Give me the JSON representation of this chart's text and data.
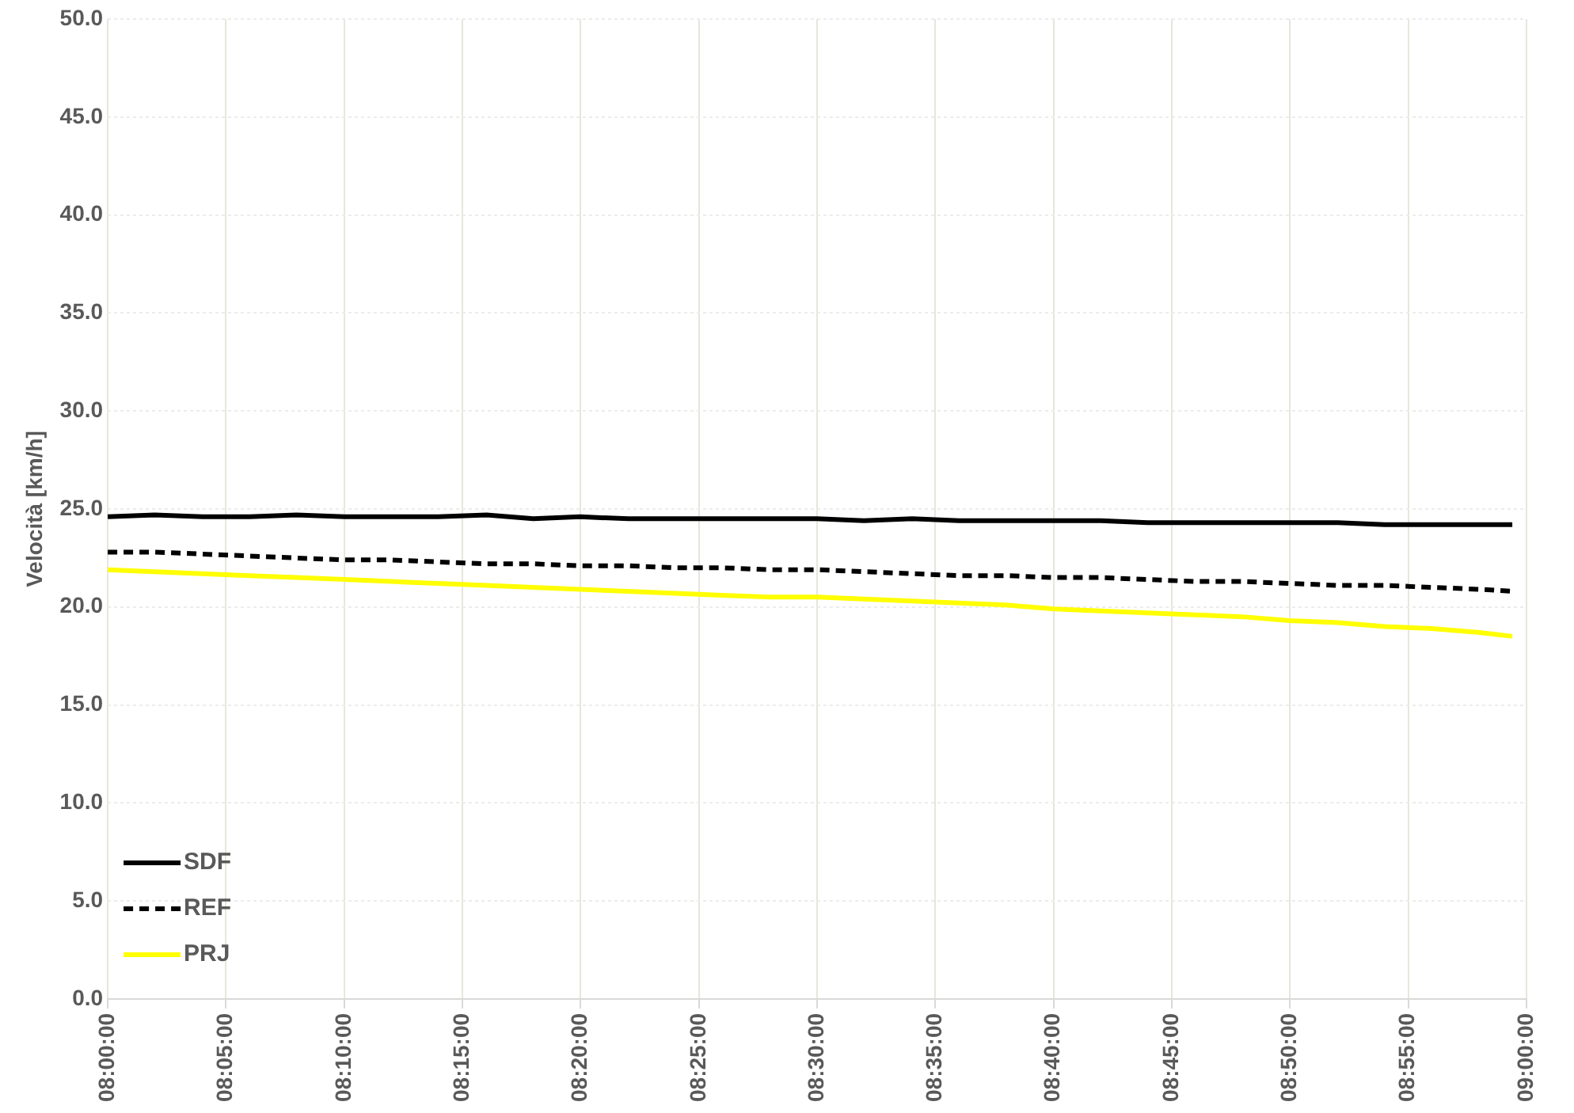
{
  "chart_data": {
    "type": "line",
    "ylabel": "Velocità [km/h]",
    "x": [
      8,
      8.033,
      8.067,
      8.1,
      8.133,
      8.167,
      8.2,
      8.233,
      8.267,
      8.3,
      8.333,
      8.367,
      8.4,
      8.433,
      8.467,
      8.5,
      8.533,
      8.567,
      8.6,
      8.633,
      8.667,
      8.7,
      8.733,
      8.767,
      8.8,
      8.833,
      8.867,
      8.9,
      8.933,
      8.967,
      8.99
    ],
    "series": [
      {
        "name": "SDF",
        "color": "#000000",
        "line_style": "solid",
        "values": [
          24.6,
          24.7,
          24.6,
          24.6,
          24.7,
          24.6,
          24.6,
          24.6,
          24.7,
          24.5,
          24.6,
          24.5,
          24.5,
          24.5,
          24.5,
          24.5,
          24.4,
          24.5,
          24.4,
          24.4,
          24.4,
          24.4,
          24.3,
          24.3,
          24.3,
          24.3,
          24.3,
          24.2,
          24.2,
          24.2,
          24.2
        ]
      },
      {
        "name": "REF",
        "color": "#000000",
        "line_style": "dashed",
        "values": [
          22.8,
          22.8,
          22.7,
          22.6,
          22.5,
          22.4,
          22.4,
          22.3,
          22.2,
          22.2,
          22.1,
          22.1,
          22.0,
          22.0,
          21.9,
          21.9,
          21.8,
          21.7,
          21.6,
          21.6,
          21.5,
          21.5,
          21.4,
          21.3,
          21.3,
          21.2,
          21.1,
          21.1,
          21.0,
          20.9,
          20.8
        ]
      },
      {
        "name": "PRJ",
        "color": "#ffff00",
        "line_style": "solid",
        "values": [
          21.9,
          21.8,
          21.7,
          21.6,
          21.5,
          21.4,
          21.3,
          21.2,
          21.1,
          21.0,
          20.9,
          20.8,
          20.7,
          20.6,
          20.5,
          20.5,
          20.4,
          20.3,
          20.2,
          20.1,
          19.9,
          19.8,
          19.7,
          19.6,
          19.5,
          19.3,
          19.2,
          19.0,
          18.9,
          18.7,
          18.5
        ]
      }
    ],
    "xlim": [
      8,
      9
    ],
    "xticks": [
      {
        "value": 8,
        "label": "08:00:00"
      },
      {
        "value": 8.0833,
        "label": "08:05:00"
      },
      {
        "value": 8.1667,
        "label": "08:10:00"
      },
      {
        "value": 8.25,
        "label": "08:15:00"
      },
      {
        "value": 8.3333,
        "label": "08:20:00"
      },
      {
        "value": 8.4167,
        "label": "08:25:00"
      },
      {
        "value": 8.5,
        "label": "08:30:00"
      },
      {
        "value": 8.5833,
        "label": "08:35:00"
      },
      {
        "value": 8.6667,
        "label": "08:40:00"
      },
      {
        "value": 8.75,
        "label": "08:45:00"
      },
      {
        "value": 8.8333,
        "label": "08:50:00"
      },
      {
        "value": 8.9167,
        "label": "08:55:00"
      },
      {
        "value": 9,
        "label": "09:00:00"
      }
    ],
    "ylim": [
      0,
      50
    ],
    "yticks": [
      {
        "value": 0,
        "label": "0.0"
      },
      {
        "value": 5,
        "label": "5.0"
      },
      {
        "value": 10,
        "label": "10.0"
      },
      {
        "value": 15,
        "label": "15.0"
      },
      {
        "value": 20,
        "label": "20.0"
      },
      {
        "value": 25,
        "label": "25.0"
      },
      {
        "value": 30,
        "label": "30.0"
      },
      {
        "value": 35,
        "label": "35.0"
      },
      {
        "value": 40,
        "label": "40.0"
      },
      {
        "value": 45,
        "label": "45.0"
      },
      {
        "value": 50,
        "label": "50.0"
      }
    ],
    "grid": true,
    "legend": "bottom left",
    "marker": "none"
  }
}
